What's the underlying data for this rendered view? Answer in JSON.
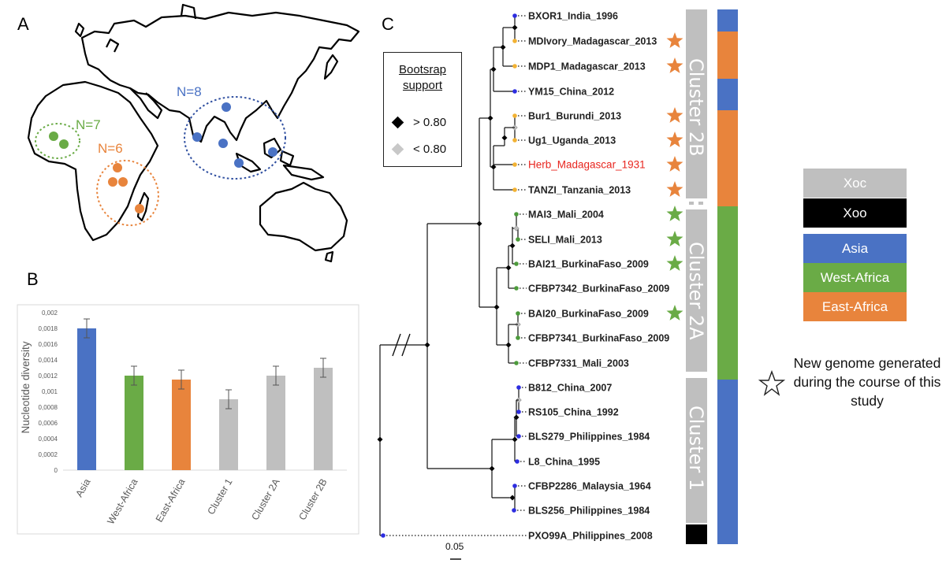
{
  "panels": {
    "a": "A",
    "b": "B",
    "c": "C"
  },
  "colors": {
    "asia": "#4a72c4",
    "west_africa": "#6aab46",
    "east_africa": "#e8843c",
    "cluster_grey": "#bfbfbf",
    "xoo": "#000000",
    "herb_red": "#e8261f",
    "tip_blue": "#2d2de0",
    "tip_orange": "#f2b233",
    "tip_green": "#4d9b3c"
  },
  "map": {
    "groups": [
      {
        "label": "N=7",
        "region": "west_africa"
      },
      {
        "label": "N=6",
        "region": "east_africa"
      },
      {
        "label": "N=8",
        "region": "asia"
      }
    ]
  },
  "chart_data": {
    "type": "bar",
    "categories": [
      "Asia",
      "West-Africa",
      "East-Africa",
      "Cluster 1",
      "Cluster 2A",
      "Cluster 2B"
    ],
    "values": [
      0.0018,
      0.0012,
      0.00115,
      0.0009,
      0.0012,
      0.0013
    ],
    "errors": [
      0.00012,
      0.00012,
      0.00012,
      0.00012,
      0.00012,
      0.00012
    ],
    "bar_colors": [
      "#4a72c4",
      "#6aab46",
      "#e8843c",
      "#bfbfbf",
      "#bfbfbf",
      "#bfbfbf"
    ],
    "ylabel": "Nucleotide diversity",
    "ylim": [
      0,
      0.002
    ],
    "yticks": [
      0,
      0.0002,
      0.0004,
      0.0006,
      0.0008,
      0.001,
      0.0012,
      0.0014,
      0.0016,
      0.0018,
      0.002
    ],
    "ytick_labels": [
      "0",
      "0,0002",
      "0,0004",
      "0,0006",
      "0,0008",
      "0,001",
      "0,0012",
      "0,0014",
      "0,0016",
      "0,0018",
      "0,002"
    ],
    "grid": false
  },
  "tree": {
    "taxa": [
      {
        "name": "BXOR1_India_1996",
        "tip": "tip_blue",
        "star": false
      },
      {
        "name": "MDIvory_Madagascar_2013",
        "tip": "tip_orange",
        "star": true
      },
      {
        "name": "MDP1_Madagascar_2013",
        "tip": "tip_orange",
        "star": true
      },
      {
        "name": "YM15_China_2012",
        "tip": "tip_blue",
        "star": false
      },
      {
        "name": "Bur1_Burundi_2013",
        "tip": "tip_orange",
        "star": true
      },
      {
        "name": "Ug1_Uganda_2013",
        "tip": "tip_orange",
        "star": true
      },
      {
        "name": "Herb_Madagascar_1931",
        "tip": "tip_orange",
        "star": true,
        "highlight": true
      },
      {
        "name": "TANZI_Tanzania_2013",
        "tip": "tip_orange",
        "star": true
      },
      {
        "name": "MAI3_Mali_2004",
        "tip": "tip_green",
        "star": true
      },
      {
        "name": "SELI_Mali_2013",
        "tip": "tip_green",
        "star": true
      },
      {
        "name": "BAI21_BurkinaFaso_2009",
        "tip": "tip_green",
        "star": true
      },
      {
        "name": "CFBP7342_BurkinaFaso_2009",
        "tip": "tip_green",
        "star": false
      },
      {
        "name": "BAI20_BurkinaFaso_2009",
        "tip": "tip_green",
        "star": true
      },
      {
        "name": "CFBP7341_BurkinaFaso_2009",
        "tip": "tip_green",
        "star": false
      },
      {
        "name": "CFBP7331_Mali_2003",
        "tip": "tip_green",
        "star": false
      },
      {
        "name": "B812_China_2007",
        "tip": "tip_blue",
        "star": false
      },
      {
        "name": "RS105_China_1992",
        "tip": "tip_blue",
        "star": false
      },
      {
        "name": "BLS279_Philippines_1984",
        "tip": "tip_blue",
        "star": false
      },
      {
        "name": "L8_China_1995",
        "tip": "tip_blue",
        "star": false
      },
      {
        "name": "CFBP2286_Malaysia_1964",
        "tip": "tip_blue",
        "star": false
      },
      {
        "name": "BLS256_Philippines_1984",
        "tip": "tip_blue",
        "star": false
      },
      {
        "name": "PXO99A_Philippines_2008",
        "tip": "tip_blue",
        "star": false
      }
    ],
    "clusters": [
      {
        "label": "Cluster 2B"
      },
      {
        "label": "Cluster 2A"
      },
      {
        "label": "Cluster 1"
      }
    ],
    "scale_label": "0.05"
  },
  "bootstrap_legend": {
    "title_line1": "Bootsrap",
    "title_line2": "support",
    "high": "> 0.80",
    "low": "< 0.80"
  },
  "legend": {
    "items": [
      {
        "label": "Xoc",
        "color": "#bfbfbf"
      },
      {
        "label": "Xoo",
        "color": "#000000"
      },
      {
        "label": "Asia",
        "color": "#4a72c4"
      },
      {
        "label": "West-Africa",
        "color": "#6aab46"
      },
      {
        "label": "East-Africa",
        "color": "#e8843c"
      }
    ],
    "star_note": "New genome generated during the course of this study"
  }
}
